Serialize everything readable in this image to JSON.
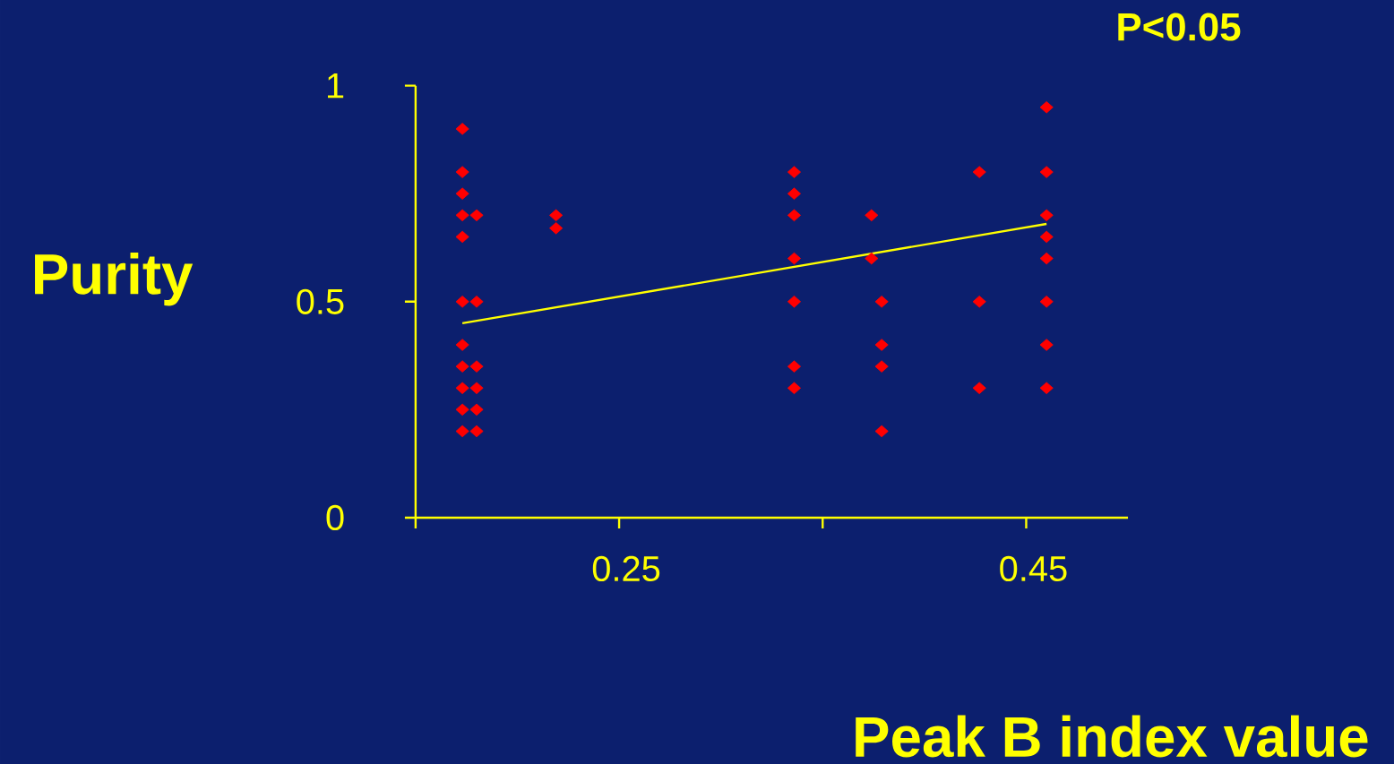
{
  "chart_data": {
    "type": "scatter",
    "xlabel": "Peak B index value",
    "ylabel": "Purity",
    "annotations": [
      "P<0.05"
    ],
    "xlim": [
      0.15,
      0.5
    ],
    "ylim": [
      0,
      1
    ],
    "xticks": [
      {
        "value": 0.15,
        "label": null
      },
      0.25,
      {
        "value": 0.35,
        "label": null
      },
      0.45
    ],
    "yticks": [
      0,
      0.5,
      1
    ],
    "marker": "diamond",
    "grid": false,
    "series": [
      {
        "color": "#ff0000",
        "x": [
          0.173,
          0.173,
          0.173,
          0.173,
          0.173,
          0.173,
          0.173,
          0.173,
          0.173,
          0.173,
          0.173,
          0.18,
          0.18,
          0.18,
          0.18,
          0.18,
          0.18,
          0.219,
          0.219,
          0.336,
          0.336,
          0.336,
          0.336,
          0.336,
          0.336,
          0.336,
          0.374,
          0.374,
          0.379,
          0.379,
          0.379,
          0.379,
          0.427,
          0.427,
          0.427,
          0.46,
          0.46,
          0.46,
          0.46,
          0.46,
          0.46,
          0.46,
          0.46
        ],
        "values": [
          0.9,
          0.8,
          0.75,
          0.7,
          0.65,
          0.5,
          0.4,
          0.35,
          0.3,
          0.25,
          0.2,
          0.7,
          0.5,
          0.35,
          0.3,
          0.25,
          0.2,
          0.7,
          0.67,
          0.8,
          0.75,
          0.7,
          0.6,
          0.5,
          0.35,
          0.3,
          0.7,
          0.6,
          0.5,
          0.4,
          0.35,
          0.2,
          0.8,
          0.5,
          0.3,
          0.95,
          0.8,
          0.7,
          0.65,
          0.6,
          0.5,
          0.4,
          0.3
        ]
      },
      {
        "type": "line",
        "color": "#ffff00",
        "marker": "none",
        "x": [
          0.173,
          0.46
        ],
        "values": [
          0.45,
          0.68
        ]
      }
    ]
  }
}
